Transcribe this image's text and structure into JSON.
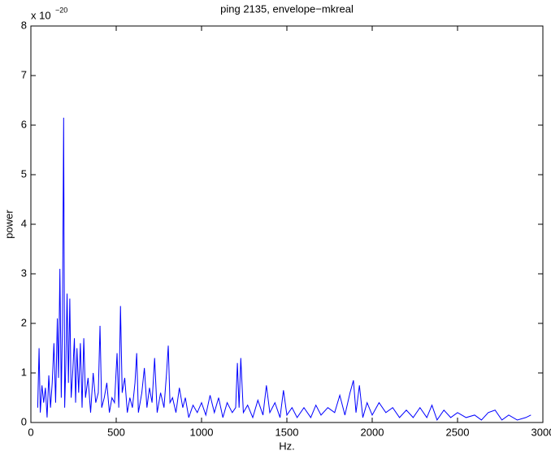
{
  "chart_data": {
    "type": "line",
    "title": "ping 2135, envelope−mkreal",
    "x_label": "Hz.",
    "y_label": "power",
    "y_multiplier": {
      "base": "x 10",
      "exponent": "−20"
    },
    "xlim": [
      0,
      3000
    ],
    "xticks": [
      0,
      500,
      1000,
      1500,
      2000,
      2500,
      3000
    ],
    "ylim": [
      0,
      8
    ],
    "yticks": [
      0,
      1,
      2,
      3,
      4,
      5,
      6,
      7,
      8
    ],
    "grid": false,
    "series": [
      {
        "name": "power",
        "color": "#0000ff",
        "x": [
          40,
          48,
          55,
          65,
          75,
          85,
          95,
          105,
          115,
          125,
          135,
          145,
          155,
          162,
          170,
          178,
          185,
          192,
          198,
          205,
          212,
          220,
          228,
          236,
          245,
          255,
          262,
          270,
          280,
          290,
          300,
          310,
          320,
          335,
          350,
          365,
          380,
          395,
          405,
          415,
          430,
          445,
          460,
          475,
          490,
          505,
          515,
          525,
          535,
          550,
          565,
          580,
          595,
          610,
          620,
          630,
          650,
          665,
          680,
          695,
          710,
          725,
          740,
          760,
          780,
          795,
          805,
          815,
          830,
          850,
          870,
          890,
          905,
          925,
          950,
          975,
          1000,
          1025,
          1050,
          1075,
          1100,
          1125,
          1150,
          1180,
          1200,
          1210,
          1220,
          1230,
          1245,
          1270,
          1300,
          1330,
          1360,
          1380,
          1400,
          1430,
          1460,
          1480,
          1500,
          1530,
          1560,
          1600,
          1640,
          1670,
          1700,
          1740,
          1780,
          1810,
          1840,
          1870,
          1890,
          1905,
          1925,
          1945,
          1970,
          2000,
          2040,
          2080,
          2120,
          2160,
          2200,
          2240,
          2280,
          2320,
          2350,
          2380,
          2420,
          2460,
          2500,
          2550,
          2600,
          2640,
          2680,
          2720,
          2760,
          2800,
          2850,
          2900,
          2930
        ],
        "values": [
          0.3,
          1.5,
          0.2,
          0.75,
          0.4,
          0.7,
          0.1,
          0.95,
          0.3,
          0.8,
          1.6,
          0.4,
          2.1,
          0.9,
          3.1,
          0.5,
          2.0,
          6.15,
          0.3,
          1.2,
          2.6,
          0.8,
          2.5,
          0.5,
          1.0,
          1.7,
          0.4,
          1.5,
          0.6,
          1.6,
          0.3,
          1.7,
          0.5,
          0.9,
          0.2,
          1.0,
          0.4,
          0.6,
          1.95,
          0.3,
          0.5,
          0.8,
          0.2,
          0.5,
          0.4,
          1.4,
          0.3,
          2.35,
          0.6,
          0.9,
          0.2,
          0.5,
          0.3,
          0.8,
          1.4,
          0.2,
          0.6,
          1.1,
          0.3,
          0.7,
          0.4,
          1.3,
          0.2,
          0.6,
          0.3,
          1.0,
          1.55,
          0.4,
          0.5,
          0.2,
          0.7,
          0.3,
          0.5,
          0.1,
          0.35,
          0.2,
          0.4,
          0.15,
          0.55,
          0.2,
          0.5,
          0.1,
          0.4,
          0.2,
          0.3,
          1.2,
          0.3,
          1.3,
          0.2,
          0.35,
          0.1,
          0.45,
          0.15,
          0.75,
          0.2,
          0.4,
          0.1,
          0.65,
          0.15,
          0.3,
          0.1,
          0.3,
          0.1,
          0.35,
          0.15,
          0.3,
          0.2,
          0.55,
          0.15,
          0.6,
          0.85,
          0.2,
          0.75,
          0.1,
          0.4,
          0.15,
          0.4,
          0.2,
          0.3,
          0.1,
          0.25,
          0.1,
          0.3,
          0.1,
          0.35,
          0.05,
          0.25,
          0.1,
          0.2,
          0.1,
          0.15,
          0.05,
          0.2,
          0.25,
          0.05,
          0.15,
          0.05,
          0.1,
          0.15
        ]
      }
    ]
  }
}
